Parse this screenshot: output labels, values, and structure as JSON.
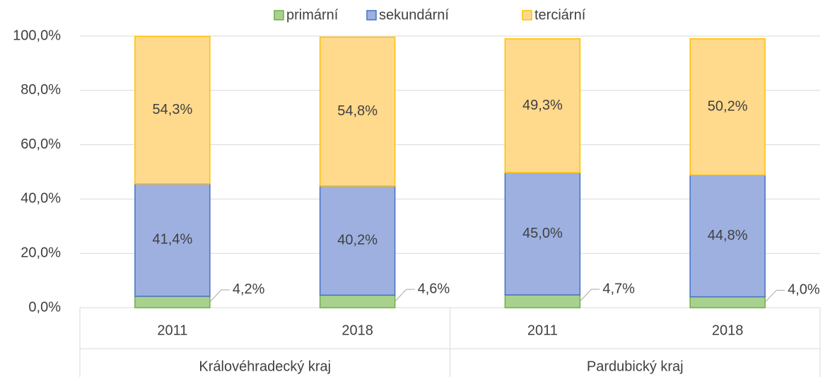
{
  "chart_data": {
    "type": "stacked_bar",
    "categories": [
      "2011",
      "2018",
      "2011",
      "2018"
    ],
    "groups": [
      "Královéhradecký kraj",
      "Pardubický kraj"
    ],
    "series": [
      {
        "name": "primární",
        "color": "#a9d18e",
        "stroke": "#70ad47",
        "values": [
          4.2,
          4.6,
          4.7,
          4.0
        ],
        "value_labels": [
          "4,2%",
          "4,6%",
          "4,7%",
          "4,0%"
        ]
      },
      {
        "name": "sekundární",
        "color": "#9db0e0",
        "stroke": "#4472c4",
        "values": [
          41.4,
          40.2,
          45.0,
          44.8
        ],
        "value_labels": [
          "41,4%",
          "40,2%",
          "45,0%",
          "44,8%"
        ]
      },
      {
        "name": "terciární",
        "color": "#ffd98c",
        "stroke": "#ffc000",
        "values": [
          54.3,
          54.8,
          49.3,
          50.2
        ],
        "value_labels": [
          "54,3%",
          "54,8%",
          "49,3%",
          "50,2%"
        ]
      }
    ],
    "ylim": [
      0,
      100
    ],
    "yticks": [
      {
        "value": 0,
        "label": "0,0%"
      },
      {
        "value": 20,
        "label": "20,0%"
      },
      {
        "value": 40,
        "label": "40,0%"
      },
      {
        "value": 60,
        "label": "60,0%"
      },
      {
        "value": 80,
        "label": "80,0%"
      },
      {
        "value": 100,
        "label": "100,0%"
      }
    ],
    "grid": true,
    "legend": "top"
  }
}
